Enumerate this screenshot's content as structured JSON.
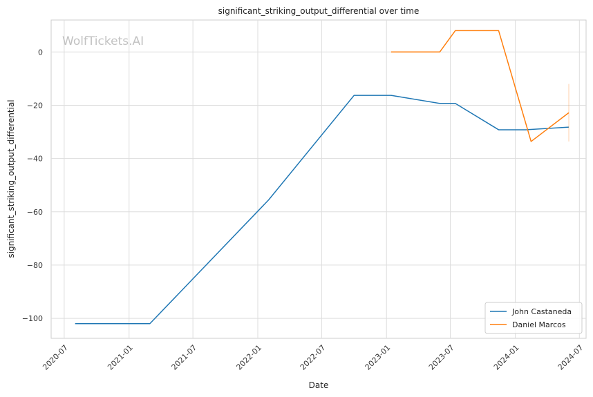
{
  "chart_data": {
    "type": "line",
    "title": "significant_striking_output_differential over time",
    "xlabel": "Date",
    "ylabel": "significant_striking_output_differential",
    "watermark": "WolfTickets.AI",
    "x_ticks": [
      "2020-07",
      "2021-01",
      "2021-07",
      "2022-01",
      "2022-07",
      "2023-01",
      "2023-07",
      "2024-01",
      "2024-07"
    ],
    "y_ticks": [
      0,
      -20,
      -40,
      -60,
      -80,
      -100
    ],
    "y_tick_labels": [
      "0",
      "−20",
      "−40",
      "−60",
      "−80",
      "−100"
    ],
    "xlim": [
      "2020-05-25",
      "2024-07-20"
    ],
    "ylim": [
      -107.5,
      12
    ],
    "grid": true,
    "legend_position": "lower-right",
    "series": [
      {
        "name": "John Castaneda",
        "color": "#1f77b4",
        "points": [
          {
            "x": "2020-08-01",
            "y": -102
          },
          {
            "x": "2021-03-01",
            "y": -102
          },
          {
            "x": "2022-02-01",
            "y": -55.5
          },
          {
            "x": "2022-10-01",
            "y": -16.3
          },
          {
            "x": "2023-01-14",
            "y": -16.3
          },
          {
            "x": "2023-06-01",
            "y": -19.3
          },
          {
            "x": "2023-07-15",
            "y": -19.3
          },
          {
            "x": "2023-11-15",
            "y": -29.2
          },
          {
            "x": "2024-02-01",
            "y": -29.2
          },
          {
            "x": "2024-06-01",
            "y": -28.2
          }
        ]
      },
      {
        "name": "Daniel Marcos",
        "color": "#ff7f0e",
        "points": [
          {
            "x": "2023-01-14",
            "y": 0
          },
          {
            "x": "2023-06-01",
            "y": 0
          },
          {
            "x": "2023-07-15",
            "y": 8
          },
          {
            "x": "2023-11-15",
            "y": 8
          },
          {
            "x": "2024-02-15",
            "y": -33.6
          },
          {
            "x": "2024-06-01",
            "y": -22.8
          }
        ],
        "error_bar": {
          "x": "2024-06-01",
          "low": -33.6,
          "high": -12
        }
      }
    ]
  }
}
